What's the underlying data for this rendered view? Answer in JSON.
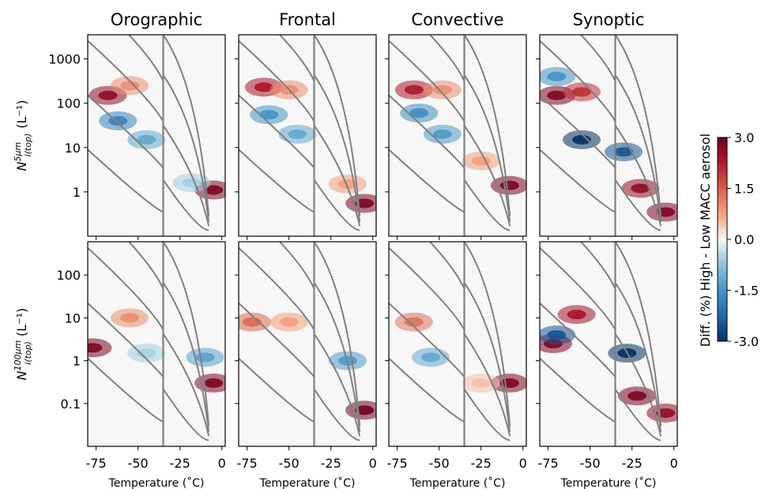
{
  "figure": {
    "panel_titles": [
      "Orographic",
      "Frontal",
      "Convective",
      "Synoptic"
    ],
    "row_ylabels": [
      {
        "base": "N",
        "sup": "5μm",
        "sub": "i(top)",
        "unit": "(L⁻¹)"
      },
      {
        "base": "N",
        "sup": "100μm",
        "sub": "i(top)",
        "unit": "(L⁻¹)"
      }
    ],
    "xlabel": "Temperature (˚C)",
    "xticks": [
      -75,
      -50,
      -25,
      0
    ],
    "xtick_labels": [
      "-75",
      "-50",
      "-25",
      "0"
    ],
    "colorbar": {
      "label": "Diff. (%) High - Low MACC aerosol",
      "ticks": [
        3.0,
        1.5,
        0.0,
        -1.5,
        -3.0
      ],
      "tick_labels": [
        "3.0",
        "1.5",
        "0.0",
        "-1.5",
        "-3.0"
      ],
      "colormap": "RdBu_r",
      "colors": {
        "low": "#053061",
        "mid": "#f7f7f7",
        "high": "#67001f"
      }
    }
  },
  "chart_data": [
    {
      "type": "heatmap",
      "row": 0,
      "xlim": [
        -80,
        2
      ],
      "ylog": true,
      "ylim": [
        0.1,
        3500
      ],
      "yticks": [
        1,
        10,
        100,
        1000
      ],
      "ytick_labels": [
        "1",
        "10",
        "100",
        "1000"
      ],
      "reference_lines": {
        "vertical_x": -35,
        "line_color": "#808080"
      },
      "panels": [
        {
          "title": "Orographic",
          "features": [
            {
              "x": -68,
              "y": 150,
              "value": 2.6
            },
            {
              "x": -55,
              "y": 250,
              "value": 1.0
            },
            {
              "x": -62,
              "y": 40,
              "value": -1.8
            },
            {
              "x": -45,
              "y": 15,
              "value": -1.2
            },
            {
              "x": -5,
              "y": 1.1,
              "value": 2.8
            },
            {
              "x": -18,
              "y": 1.6,
              "value": -0.6
            }
          ]
        },
        {
          "title": "Frontal",
          "features": [
            {
              "x": -65,
              "y": 230,
              "value": 2.3
            },
            {
              "x": -50,
              "y": 200,
              "value": 1.0
            },
            {
              "x": -62,
              "y": 55,
              "value": -1.5
            },
            {
              "x": -45,
              "y": 20,
              "value": -1.2
            },
            {
              "x": -5,
              "y": 0.55,
              "value": 2.8
            },
            {
              "x": -15,
              "y": 1.5,
              "value": 0.8
            }
          ]
        },
        {
          "title": "Convective",
          "features": [
            {
              "x": -65,
              "y": 200,
              "value": 2.3
            },
            {
              "x": -48,
              "y": 200,
              "value": 1.0
            },
            {
              "x": -62,
              "y": 60,
              "value": -1.6
            },
            {
              "x": -48,
              "y": 20,
              "value": -1.4
            },
            {
              "x": -8,
              "y": 1.4,
              "value": 2.8
            },
            {
              "x": -25,
              "y": 5,
              "value": 0.8
            }
          ]
        },
        {
          "title": "Synoptic",
          "features": [
            {
              "x": -70,
              "y": 150,
              "value": 2.8
            },
            {
              "x": -55,
              "y": 180,
              "value": 2.0
            },
            {
              "x": -55,
              "y": 15,
              "value": -3.0
            },
            {
              "x": -30,
              "y": 8,
              "value": -2.5
            },
            {
              "x": -70,
              "y": 400,
              "value": -1.5
            },
            {
              "x": -20,
              "y": 1.2,
              "value": 2.6
            },
            {
              "x": -5,
              "y": 0.35,
              "value": 2.8
            }
          ]
        }
      ]
    },
    {
      "type": "heatmap",
      "row": 1,
      "xlim": [
        -80,
        2
      ],
      "ylog": true,
      "ylim": [
        0.01,
        600
      ],
      "yticks": [
        0.1,
        1,
        10,
        100
      ],
      "ytick_labels": [
        "0.1",
        "1",
        "10",
        "100"
      ],
      "reference_lines": {
        "vertical_x": -35,
        "line_color": "#808080"
      },
      "panels": [
        {
          "title": "Orographic",
          "features": [
            {
              "x": -77,
              "y": 2,
              "value": 2.8
            },
            {
              "x": -55,
              "y": 10,
              "value": 1.0
            },
            {
              "x": -45,
              "y": 1.5,
              "value": -0.6
            },
            {
              "x": -5,
              "y": 0.3,
              "value": 2.8
            },
            {
              "x": -10,
              "y": 1.2,
              "value": -1.3
            }
          ]
        },
        {
          "title": "Frontal",
          "features": [
            {
              "x": -72,
              "y": 8,
              "value": 1.4
            },
            {
              "x": -50,
              "y": 8,
              "value": 0.8
            },
            {
              "x": -15,
              "y": 1.0,
              "value": -1.4
            },
            {
              "x": -5,
              "y": 0.07,
              "value": 2.9
            }
          ]
        },
        {
          "title": "Convective",
          "features": [
            {
              "x": -65,
              "y": 8,
              "value": 1.3
            },
            {
              "x": -55,
              "y": 1.2,
              "value": -1.2
            },
            {
              "x": -8,
              "y": 0.3,
              "value": 2.8
            },
            {
              "x": -25,
              "y": 0.3,
              "value": 0.5
            }
          ]
        },
        {
          "title": "Synoptic",
          "features": [
            {
              "x": -58,
              "y": 12,
              "value": 2.4
            },
            {
              "x": -72,
              "y": 2.5,
              "value": 2.8
            },
            {
              "x": -70,
              "y": 4,
              "value": -2.5
            },
            {
              "x": -28,
              "y": 1.5,
              "value": -3.0
            },
            {
              "x": -22,
              "y": 0.15,
              "value": 2.8
            },
            {
              "x": -5,
              "y": 0.06,
              "value": 2.6
            }
          ]
        }
      ]
    }
  ]
}
